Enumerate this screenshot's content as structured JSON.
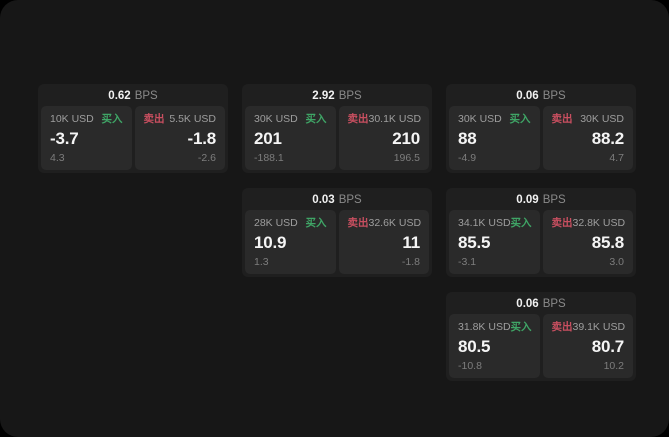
{
  "labels": {
    "unit": "BPS",
    "buy": "买入",
    "sell": "卖出"
  },
  "colors": {
    "page_bg": "#000000",
    "panel_bg": "#171717",
    "card_bg": "#1f1f1f",
    "tile_bg": "#2a2a2a",
    "buy_green": "#3fa566",
    "sell_red": "#c94f60"
  },
  "cards": [
    {
      "bps": "0.62",
      "buy": {
        "amount": "10K USD",
        "value": "-3.7",
        "sub": "4.3"
      },
      "sell": {
        "amount": "5.5K USD",
        "value": "-1.8",
        "sub": "-2.6"
      }
    },
    {
      "bps": "2.92",
      "buy": {
        "amount": "30K USD",
        "value": "201",
        "sub": "-188.1"
      },
      "sell": {
        "amount": "30.1K USD",
        "value": "210",
        "sub": "196.5"
      }
    },
    {
      "bps": "0.06",
      "buy": {
        "amount": "30K USD",
        "value": "88",
        "sub": "-4.9"
      },
      "sell": {
        "amount": "30K USD",
        "value": "88.2",
        "sub": "4.7"
      }
    },
    {
      "bps": "0.03",
      "buy": {
        "amount": "28K USD",
        "value": "10.9",
        "sub": "1.3"
      },
      "sell": {
        "amount": "32.6K USD",
        "value": "11",
        "sub": "-1.8"
      }
    },
    {
      "bps": "0.09",
      "buy": {
        "amount": "34.1K USD",
        "value": "85.5",
        "sub": "-3.1"
      },
      "sell": {
        "amount": "32.8K USD",
        "value": "85.8",
        "sub": "3.0"
      }
    },
    {
      "bps": "0.06",
      "buy": {
        "amount": "31.8K USD",
        "value": "80.5",
        "sub": "-10.8"
      },
      "sell": {
        "amount": "39.1K USD",
        "value": "80.7",
        "sub": "10.2"
      }
    }
  ]
}
